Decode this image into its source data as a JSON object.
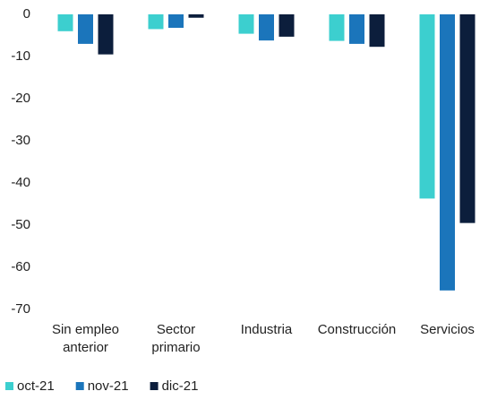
{
  "chart_data": {
    "type": "bar",
    "categories": [
      "Sin empleo anterior",
      "Sector primario",
      "Industria",
      "Construcción",
      "Servicios"
    ],
    "series": [
      {
        "name": "oct-21",
        "color": "#3ccfcf",
        "values": [
          -4,
          -3.5,
          -4.6,
          -6.3,
          -43.7
        ]
      },
      {
        "name": "nov-21",
        "color": "#1b75bb",
        "values": [
          -7,
          -3.2,
          -6.2,
          -7,
          -65.5
        ]
      },
      {
        "name": "dic-21",
        "color": "#0c1e3c",
        "values": [
          -9.5,
          -0.8,
          -5.3,
          -7.7,
          -49.5
        ]
      }
    ],
    "ylim": [
      -70,
      0
    ],
    "yticks": [
      0,
      -10,
      -20,
      -30,
      -40,
      -50,
      -60,
      -70
    ],
    "grid": false,
    "legend": "bottom"
  }
}
